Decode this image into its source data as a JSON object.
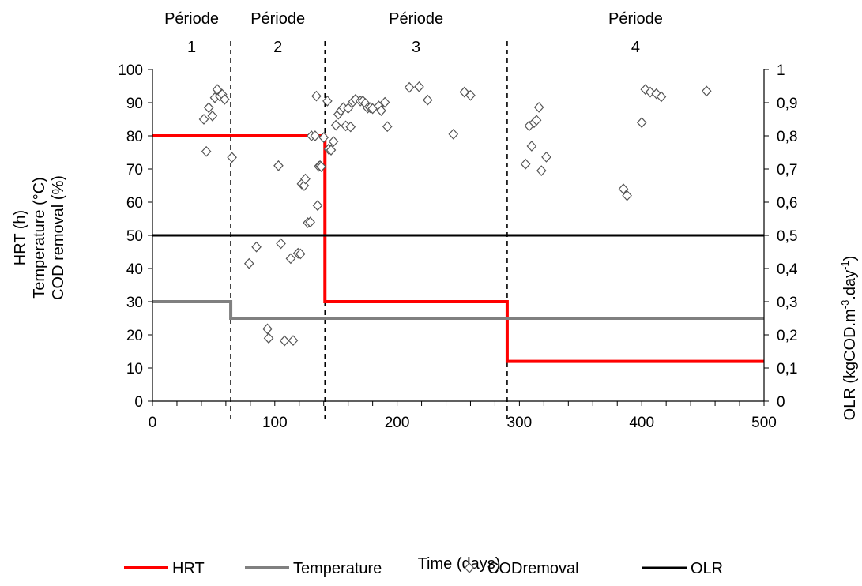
{
  "chart_data": {
    "type": "line",
    "periods": [
      {
        "line1": "Période",
        "line2": "1"
      },
      {
        "line1": "Période",
        "line2": "2"
      },
      {
        "line1": "Période",
        "line2": "3"
      },
      {
        "line1": "Période",
        "line2": "4"
      }
    ],
    "period_boundaries": [
      64,
      141,
      290
    ],
    "xlabel": "Time (days)",
    "ylabel_left": [
      "HRT (h)",
      "Temperature (°C)",
      "COD removal (%)"
    ],
    "ylabel_right": {
      "main": "OLR (kgCOD.m",
      "sup1": "-3",
      "mid": ".day",
      "sup2": "-1",
      "end": ")"
    },
    "xlim": [
      0,
      500
    ],
    "ylim_left": [
      0,
      100
    ],
    "ylim_right": [
      0,
      1
    ],
    "x_ticks": [
      "0",
      "100",
      "200",
      "300",
      "400",
      "500"
    ],
    "y_ticks_left": [
      "0",
      "10",
      "20",
      "30",
      "40",
      "50",
      "60",
      "70",
      "80",
      "90",
      "100"
    ],
    "y_ticks_right": [
      "0",
      "0,1",
      "0,2",
      "0,3",
      "0,4",
      "0,5",
      "0,6",
      "0,7",
      "0,8",
      "0,9",
      "1"
    ],
    "series": [
      {
        "name": "HRT",
        "kind": "step",
        "color": "#ff0000",
        "points": [
          [
            0,
            80
          ],
          [
            141,
            80
          ],
          [
            141,
            30
          ],
          [
            290,
            30
          ],
          [
            290,
            12
          ],
          [
            500,
            12
          ]
        ]
      },
      {
        "name": "Temperature",
        "kind": "step",
        "color": "#808080",
        "points": [
          [
            0,
            30
          ],
          [
            64,
            30
          ],
          [
            64,
            25
          ],
          [
            500,
            25
          ]
        ]
      },
      {
        "name": "CODremoval",
        "kind": "scatter",
        "color": "#555555",
        "points": [
          [
            42,
            85
          ],
          [
            44,
            75.3
          ],
          [
            46,
            88.5
          ],
          [
            49,
            86
          ],
          [
            51,
            91.5
          ],
          [
            53,
            94
          ],
          [
            55,
            92
          ],
          [
            57,
            92.5
          ],
          [
            59,
            91
          ],
          [
            65,
            73.5
          ],
          [
            79,
            41.5
          ],
          [
            85,
            46.5
          ],
          [
            94,
            21.8
          ],
          [
            95,
            19
          ],
          [
            103,
            71
          ],
          [
            105,
            47.5
          ],
          [
            108,
            18.2
          ],
          [
            113,
            43
          ],
          [
            115,
            18.3
          ],
          [
            119,
            44.6
          ],
          [
            121,
            44.4
          ],
          [
            122,
            65.5
          ],
          [
            124,
            65
          ],
          [
            125,
            67
          ],
          [
            127,
            53.8
          ],
          [
            129,
            54
          ],
          [
            130,
            80
          ],
          [
            133,
            80
          ],
          [
            134,
            92
          ],
          [
            135,
            59
          ],
          [
            136,
            70.8
          ],
          [
            137,
            71
          ],
          [
            138,
            70.7
          ],
          [
            140,
            79.5
          ],
          [
            143,
            90.5
          ],
          [
            144,
            76
          ],
          [
            146,
            75.7
          ],
          [
            148,
            78.3
          ],
          [
            150,
            83.2
          ],
          [
            152,
            86.5
          ],
          [
            154,
            87.6
          ],
          [
            156,
            88.5
          ],
          [
            158,
            83
          ],
          [
            160,
            88.3
          ],
          [
            162,
            82.7
          ],
          [
            164,
            90.3
          ],
          [
            166,
            91
          ],
          [
            170,
            90.5
          ],
          [
            172,
            90.5
          ],
          [
            174,
            89.8
          ],
          [
            176,
            88.4
          ],
          [
            178,
            88.5
          ],
          [
            180,
            88.2
          ],
          [
            185,
            89
          ],
          [
            187,
            87.6
          ],
          [
            190,
            90.1
          ],
          [
            192,
            82.8
          ],
          [
            210,
            94.6
          ],
          [
            218,
            94.8
          ],
          [
            225,
            90.8
          ],
          [
            246,
            80.5
          ],
          [
            255,
            93.2
          ],
          [
            260,
            92.2
          ],
          [
            305,
            71.5
          ],
          [
            308,
            83
          ],
          [
            310,
            76.9
          ],
          [
            312,
            84
          ],
          [
            314,
            84.7
          ],
          [
            316,
            88.6
          ],
          [
            318,
            69.5
          ],
          [
            322,
            73.6
          ],
          [
            385,
            64
          ],
          [
            388,
            62
          ],
          [
            400,
            84
          ],
          [
            403,
            94
          ],
          [
            407,
            93.2
          ],
          [
            412,
            92.7
          ],
          [
            416,
            91.8
          ],
          [
            453,
            93.5
          ]
        ]
      },
      {
        "name": "OLR",
        "kind": "line",
        "color": "#000000",
        "points": [
          [
            0,
            0.5
          ],
          [
            500,
            0.5
          ]
        ]
      }
    ],
    "legend": {
      "position": "bottom",
      "entries": [
        "HRT",
        "Temperature",
        "CODremoval",
        "OLR"
      ]
    }
  }
}
